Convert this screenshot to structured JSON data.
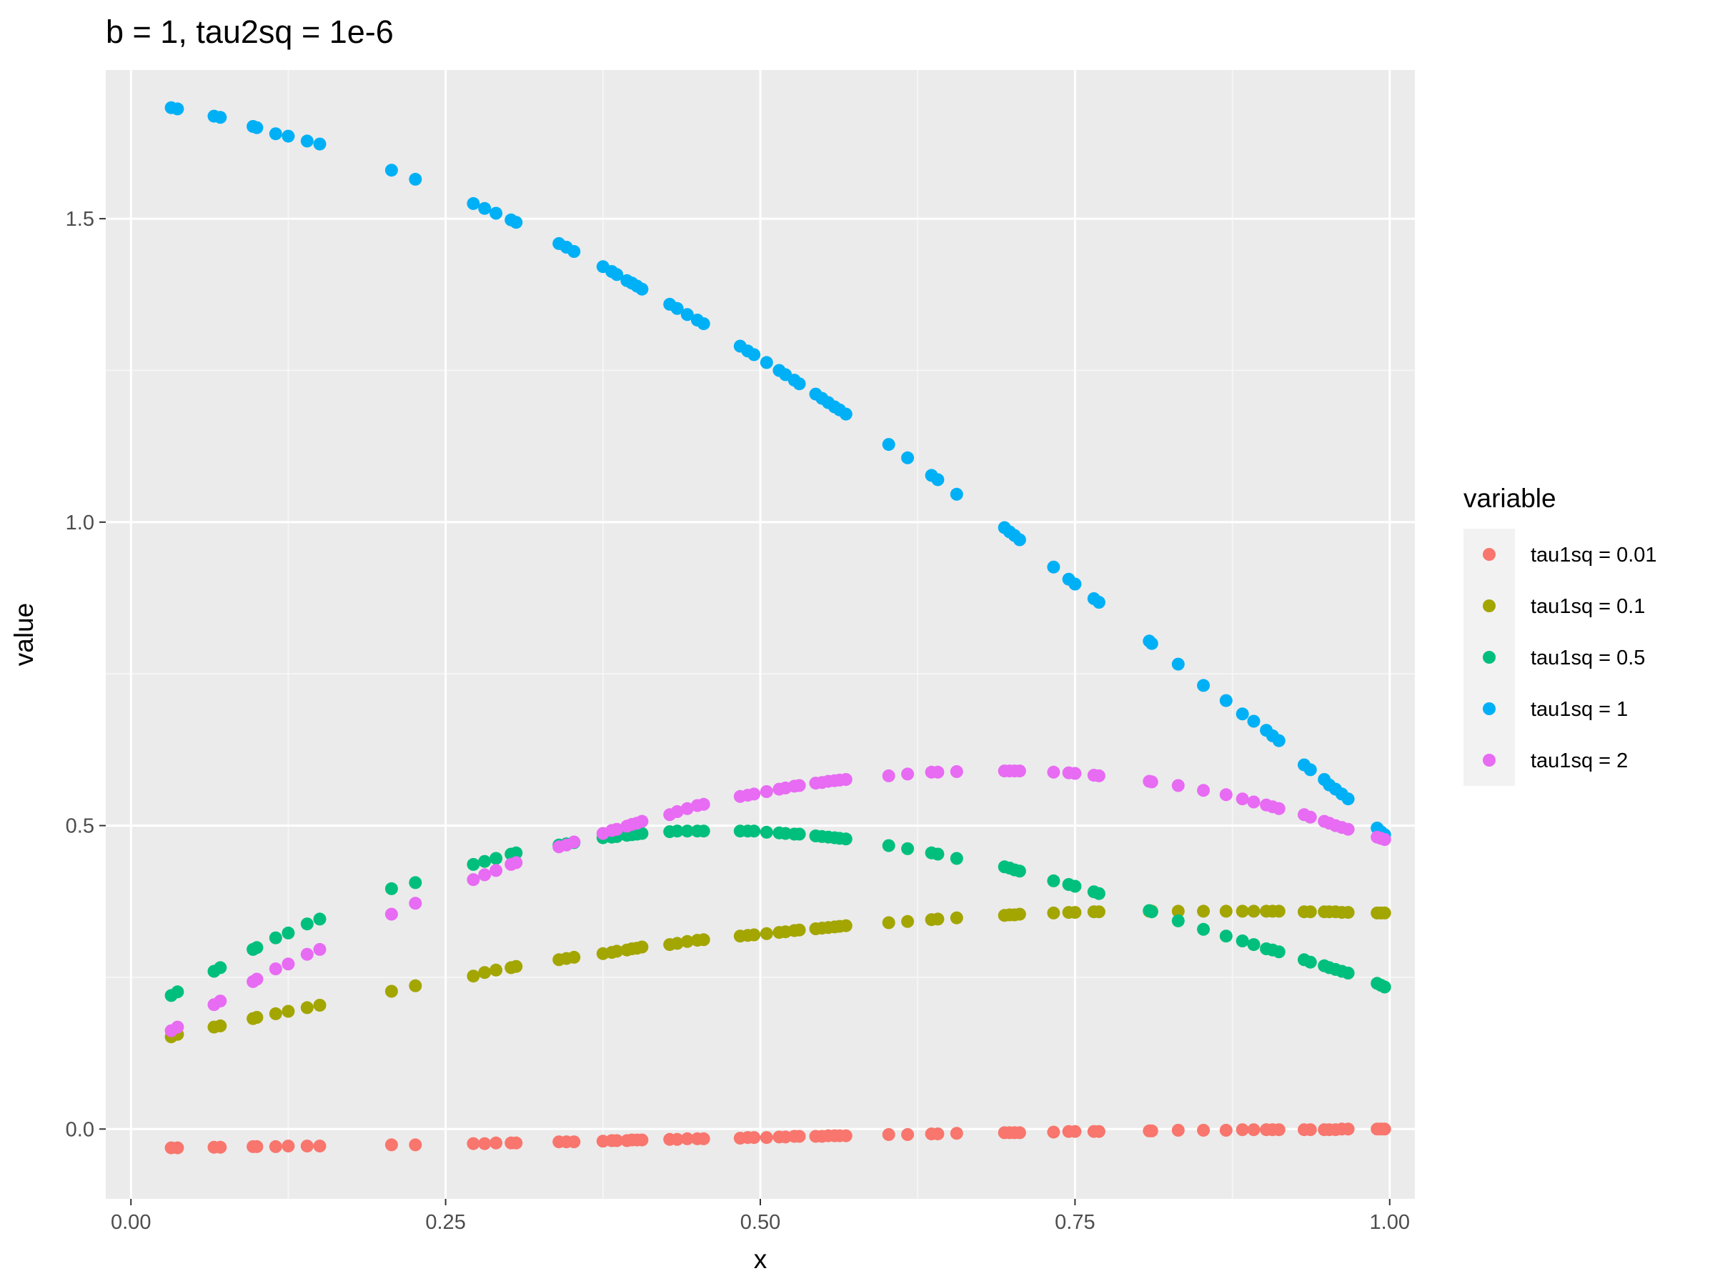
{
  "chart_data": {
    "type": "scatter",
    "title": "b = 1, tau2sq = 1e-6",
    "xlabel": "x",
    "ylabel": "value",
    "xlim": [
      -0.02,
      1.02
    ],
    "ylim": [
      -0.115,
      1.745
    ],
    "x_ticks": [
      0.0,
      0.25,
      0.5,
      0.75,
      1.0
    ],
    "x_tick_labels": [
      "0.00",
      "0.25",
      "0.50",
      "0.75",
      "1.00"
    ],
    "y_ticks": [
      0.0,
      0.5,
      1.0,
      1.5
    ],
    "y_tick_labels": [
      "0.0",
      "0.5",
      "1.0",
      "1.5"
    ],
    "grid": true,
    "legend": {
      "title": "variable",
      "position": "right"
    },
    "x": [
      0.032,
      0.037,
      0.066,
      0.071,
      0.097,
      0.1,
      0.115,
      0.125,
      0.14,
      0.15,
      0.207,
      0.226,
      0.272,
      0.281,
      0.29,
      0.302,
      0.306,
      0.34,
      0.346,
      0.352,
      0.375,
      0.382,
      0.386,
      0.394,
      0.398,
      0.402,
      0.406,
      0.428,
      0.434,
      0.442,
      0.45,
      0.455,
      0.484,
      0.49,
      0.495,
      0.505,
      0.515,
      0.52,
      0.527,
      0.531,
      0.544,
      0.549,
      0.554,
      0.559,
      0.563,
      0.568,
      0.602,
      0.617,
      0.636,
      0.641,
      0.656,
      0.694,
      0.698,
      0.702,
      0.706,
      0.733,
      0.745,
      0.75,
      0.765,
      0.769,
      0.809,
      0.811,
      0.832,
      0.852,
      0.87,
      0.883,
      0.892,
      0.902,
      0.907,
      0.912,
      0.932,
      0.937,
      0.948,
      0.952,
      0.957,
      0.962,
      0.967,
      0.99,
      0.993,
      0.996
    ],
    "series": [
      {
        "name": "tau1sq = 0.01",
        "color": "#F8766D",
        "values": [
          -0.031,
          -0.031,
          -0.03,
          -0.03,
          -0.029,
          -0.029,
          -0.029,
          -0.028,
          -0.028,
          -0.028,
          -0.026,
          -0.026,
          -0.024,
          -0.024,
          -0.023,
          -0.023,
          -0.023,
          -0.021,
          -0.021,
          -0.021,
          -0.02,
          -0.019,
          -0.019,
          -0.019,
          -0.018,
          -0.018,
          -0.018,
          -0.017,
          -0.017,
          -0.016,
          -0.016,
          -0.016,
          -0.015,
          -0.014,
          -0.014,
          -0.014,
          -0.013,
          -0.013,
          -0.012,
          -0.012,
          -0.012,
          -0.012,
          -0.011,
          -0.011,
          -0.011,
          -0.011,
          -0.009,
          -0.009,
          -0.008,
          -0.008,
          -0.007,
          -0.006,
          -0.006,
          -0.006,
          -0.006,
          -0.005,
          -0.004,
          -0.004,
          -0.004,
          -0.004,
          -0.003,
          -0.003,
          -0.002,
          -0.002,
          -0.002,
          -0.001,
          -0.001,
          -0.001,
          -0.001,
          -0.001,
          -0.001,
          -0.001,
          -0.001,
          -0.001,
          -0.001,
          0.0,
          0.0,
          0.0,
          0.0,
          0.0
        ]
      },
      {
        "name": "tau1sq = 0.1",
        "color": "#A3A500",
        "values": [
          0.152,
          0.156,
          0.168,
          0.17,
          0.182,
          0.184,
          0.19,
          0.194,
          0.2,
          0.204,
          0.227,
          0.236,
          0.252,
          0.258,
          0.262,
          0.266,
          0.268,
          0.279,
          0.281,
          0.283,
          0.289,
          0.291,
          0.293,
          0.295,
          0.297,
          0.298,
          0.3,
          0.304,
          0.306,
          0.309,
          0.311,
          0.312,
          0.318,
          0.319,
          0.32,
          0.322,
          0.324,
          0.325,
          0.327,
          0.328,
          0.33,
          0.331,
          0.332,
          0.333,
          0.334,
          0.335,
          0.34,
          0.342,
          0.345,
          0.346,
          0.348,
          0.352,
          0.353,
          0.353,
          0.354,
          0.356,
          0.357,
          0.357,
          0.358,
          0.358,
          0.359,
          0.359,
          0.359,
          0.359,
          0.359,
          0.359,
          0.359,
          0.359,
          0.359,
          0.359,
          0.358,
          0.358,
          0.358,
          0.358,
          0.358,
          0.357,
          0.357,
          0.356,
          0.356,
          0.356
        ]
      },
      {
        "name": "tau1sq = 0.5",
        "color": "#00BF7D",
        "values": [
          0.22,
          0.226,
          0.26,
          0.266,
          0.296,
          0.299,
          0.315,
          0.323,
          0.338,
          0.346,
          0.396,
          0.406,
          0.436,
          0.441,
          0.446,
          0.453,
          0.455,
          0.468,
          0.47,
          0.472,
          0.48,
          0.481,
          0.482,
          0.484,
          0.485,
          0.486,
          0.487,
          0.49,
          0.491,
          0.491,
          0.491,
          0.491,
          0.491,
          0.491,
          0.491,
          0.489,
          0.488,
          0.487,
          0.486,
          0.486,
          0.483,
          0.482,
          0.481,
          0.48,
          0.479,
          0.478,
          0.467,
          0.462,
          0.455,
          0.453,
          0.446,
          0.432,
          0.43,
          0.427,
          0.425,
          0.409,
          0.403,
          0.4,
          0.391,
          0.388,
          0.36,
          0.358,
          0.343,
          0.329,
          0.318,
          0.31,
          0.304,
          0.297,
          0.295,
          0.292,
          0.279,
          0.275,
          0.269,
          0.266,
          0.263,
          0.26,
          0.257,
          0.24,
          0.237,
          0.234
        ]
      },
      {
        "name": "tau1sq = 1",
        "color": "#00B0F6",
        "values": [
          1.683,
          1.681,
          1.669,
          1.667,
          1.652,
          1.65,
          1.64,
          1.636,
          1.628,
          1.623,
          1.58,
          1.565,
          1.525,
          1.517,
          1.509,
          1.498,
          1.494,
          1.459,
          1.453,
          1.446,
          1.421,
          1.413,
          1.408,
          1.398,
          1.394,
          1.389,
          1.384,
          1.359,
          1.352,
          1.342,
          1.333,
          1.327,
          1.29,
          1.282,
          1.276,
          1.263,
          1.25,
          1.243,
          1.234,
          1.228,
          1.211,
          1.204,
          1.197,
          1.19,
          1.185,
          1.178,
          1.128,
          1.106,
          1.077,
          1.07,
          1.046,
          0.991,
          0.984,
          0.978,
          0.971,
          0.926,
          0.906,
          0.898,
          0.874,
          0.868,
          0.804,
          0.8,
          0.766,
          0.731,
          0.706,
          0.684,
          0.672,
          0.657,
          0.648,
          0.64,
          0.6,
          0.592,
          0.576,
          0.567,
          0.56,
          0.552,
          0.544,
          0.496,
          0.49,
          0.485
        ]
      },
      {
        "name": "tau1sq = 2",
        "color": "#E76BF3",
        "values": [
          0.162,
          0.168,
          0.205,
          0.211,
          0.243,
          0.247,
          0.264,
          0.272,
          0.288,
          0.296,
          0.354,
          0.372,
          0.411,
          0.419,
          0.426,
          0.436,
          0.439,
          0.465,
          0.468,
          0.473,
          0.487,
          0.492,
          0.494,
          0.499,
          0.502,
          0.504,
          0.507,
          0.518,
          0.523,
          0.528,
          0.533,
          0.535,
          0.548,
          0.55,
          0.552,
          0.556,
          0.56,
          0.562,
          0.565,
          0.566,
          0.57,
          0.571,
          0.573,
          0.574,
          0.575,
          0.576,
          0.582,
          0.585,
          0.588,
          0.588,
          0.589,
          0.59,
          0.59,
          0.59,
          0.59,
          0.588,
          0.587,
          0.586,
          0.583,
          0.582,
          0.573,
          0.572,
          0.566,
          0.558,
          0.551,
          0.544,
          0.539,
          0.534,
          0.531,
          0.528,
          0.518,
          0.514,
          0.507,
          0.504,
          0.5,
          0.497,
          0.494,
          0.481,
          0.479,
          0.477
        ]
      }
    ]
  }
}
